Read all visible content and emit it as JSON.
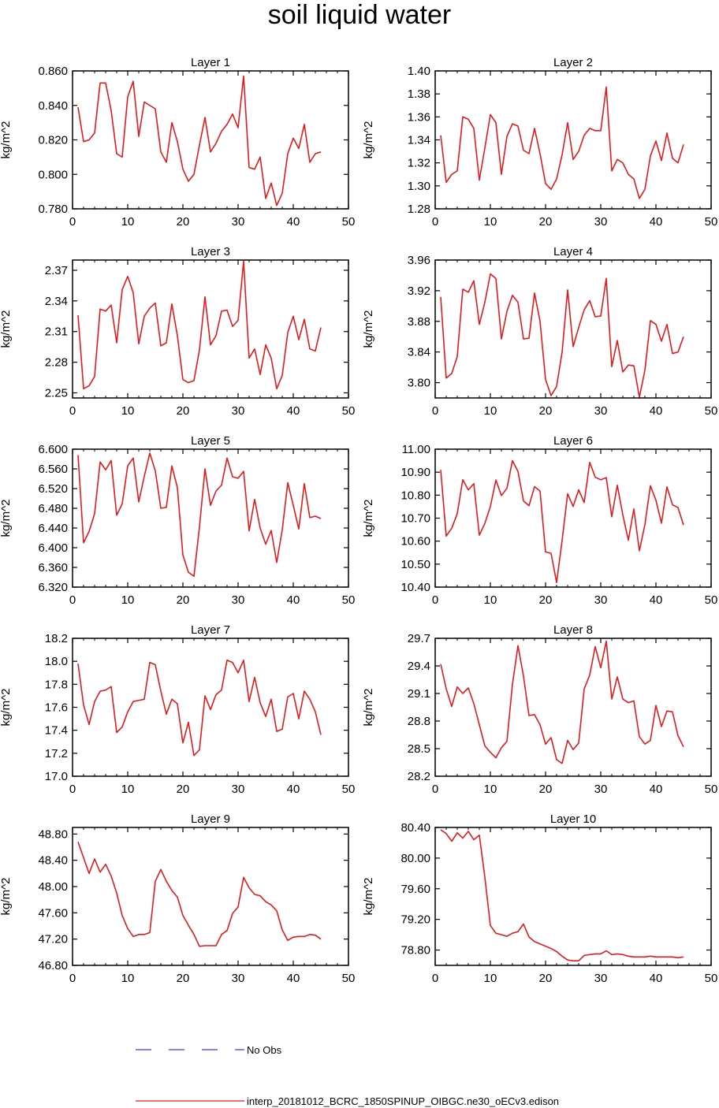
{
  "figure": {
    "title": "soil liquid water"
  },
  "colors": {
    "model_line": "#e31a1c",
    "obs_line": "#3b3bf0",
    "axis": "#000000"
  },
  "legend": {
    "obs_label": "No Obs",
    "model_label": "interp_20181012_BCRC_1850SPINUP_OIBGC.ne30_oECv3.edison"
  },
  "chart_data": [
    {
      "type": "line",
      "title": "Layer 1",
      "ylabel": "kg/m^2",
      "xlim": [
        0,
        50
      ],
      "ylim": [
        0.78,
        0.86
      ],
      "xticks": [
        0,
        10,
        20,
        30,
        40,
        50
      ],
      "yticks": [
        "0.780",
        "0.800",
        "0.820",
        "0.840",
        "0.860"
      ],
      "x": [
        1,
        2,
        3,
        4,
        5,
        6,
        7,
        8,
        9,
        10,
        11,
        12,
        13,
        14,
        15,
        16,
        17,
        18,
        19,
        20,
        21,
        22,
        23,
        24,
        25,
        26,
        27,
        28,
        29,
        30,
        31,
        32,
        33,
        34,
        35,
        36,
        37,
        38,
        39,
        40,
        41,
        42,
        43,
        44,
        45
      ],
      "series": [
        {
          "values": [
            0.839,
            0.819,
            0.82,
            0.824,
            0.853,
            0.853,
            0.837,
            0.812,
            0.81,
            0.845,
            0.854,
            0.822,
            0.842,
            0.84,
            0.838,
            0.813,
            0.807,
            0.83,
            0.819,
            0.803,
            0.796,
            0.8,
            0.817,
            0.833,
            0.813,
            0.818,
            0.825,
            0.829,
            0.835,
            0.827,
            0.857,
            0.804,
            0.803,
            0.81,
            0.786,
            0.795,
            0.782,
            0.789,
            0.812,
            0.821,
            0.815,
            0.829,
            0.807,
            0.812,
            0.813
          ]
        }
      ]
    },
    {
      "type": "line",
      "title": "Layer 2",
      "ylabel": "kg/m^2",
      "xlim": [
        0,
        50
      ],
      "ylim": [
        1.28,
        1.4
      ],
      "xticks": [
        0,
        10,
        20,
        30,
        40,
        50
      ],
      "yticks": [
        "1.28",
        "1.30",
        "1.32",
        "1.34",
        "1.36",
        "1.38",
        "1.40"
      ],
      "x": [
        1,
        2,
        3,
        4,
        5,
        6,
        7,
        8,
        9,
        10,
        11,
        12,
        13,
        14,
        15,
        16,
        17,
        18,
        19,
        20,
        21,
        22,
        23,
        24,
        25,
        26,
        27,
        28,
        29,
        30,
        31,
        32,
        33,
        34,
        35,
        36,
        37,
        38,
        39,
        40,
        41,
        42,
        43,
        44,
        45
      ],
      "series": [
        {
          "values": [
            1.344,
            1.303,
            1.31,
            1.313,
            1.36,
            1.358,
            1.35,
            1.305,
            1.333,
            1.362,
            1.355,
            1.31,
            1.343,
            1.354,
            1.352,
            1.331,
            1.328,
            1.35,
            1.328,
            1.302,
            1.297,
            1.306,
            1.327,
            1.355,
            1.323,
            1.33,
            1.344,
            1.35,
            1.348,
            1.348,
            1.386,
            1.313,
            1.323,
            1.32,
            1.31,
            1.306,
            1.289,
            1.297,
            1.326,
            1.339,
            1.322,
            1.346,
            1.324,
            1.32,
            1.336
          ]
        }
      ]
    },
    {
      "type": "line",
      "title": "Layer 3",
      "ylabel": "kg/m^2",
      "xlim": [
        0,
        50
      ],
      "ylim": [
        2.245,
        2.38
      ],
      "xticks": [
        0,
        10,
        20,
        30,
        40,
        50
      ],
      "yticks": [
        "2.25",
        "2.28",
        "2.31",
        "2.34",
        "2.37"
      ],
      "x": [
        1,
        2,
        3,
        4,
        5,
        6,
        7,
        8,
        9,
        10,
        11,
        12,
        13,
        14,
        15,
        16,
        17,
        18,
        19,
        20,
        21,
        22,
        23,
        24,
        25,
        26,
        27,
        28,
        29,
        30,
        31,
        32,
        33,
        34,
        35,
        36,
        37,
        38,
        39,
        40,
        41,
        42,
        43,
        44,
        45
      ],
      "series": [
        {
          "values": [
            2.326,
            2.254,
            2.257,
            2.266,
            2.332,
            2.33,
            2.336,
            2.299,
            2.351,
            2.364,
            2.348,
            2.298,
            2.325,
            2.333,
            2.338,
            2.296,
            2.299,
            2.337,
            2.306,
            2.263,
            2.26,
            2.262,
            2.292,
            2.344,
            2.297,
            2.306,
            2.33,
            2.331,
            2.315,
            2.321,
            2.379,
            2.284,
            2.293,
            2.268,
            2.297,
            2.284,
            2.254,
            2.267,
            2.309,
            2.325,
            2.302,
            2.322,
            2.293,
            2.291,
            2.314
          ]
        }
      ]
    },
    {
      "type": "line",
      "title": "Layer 4",
      "ylabel": "kg/m^2",
      "xlim": [
        0,
        50
      ],
      "ylim": [
        3.78,
        3.96
      ],
      "xticks": [
        0,
        10,
        20,
        30,
        40,
        50
      ],
      "yticks": [
        "3.80",
        "3.84",
        "3.88",
        "3.92",
        "3.96"
      ],
      "x": [
        1,
        2,
        3,
        4,
        5,
        6,
        7,
        8,
        9,
        10,
        11,
        12,
        13,
        14,
        15,
        16,
        17,
        18,
        19,
        20,
        21,
        22,
        23,
        24,
        25,
        26,
        27,
        28,
        29,
        30,
        31,
        32,
        33,
        34,
        35,
        36,
        37,
        38,
        39,
        40,
        41,
        42,
        43,
        44,
        45
      ],
      "series": [
        {
          "values": [
            3.912,
            3.806,
            3.812,
            3.834,
            3.922,
            3.918,
            3.933,
            3.876,
            3.905,
            3.942,
            3.936,
            3.857,
            3.893,
            3.914,
            3.905,
            3.857,
            3.858,
            3.917,
            3.88,
            3.804,
            3.783,
            3.795,
            3.84,
            3.921,
            3.847,
            3.872,
            3.895,
            3.907,
            3.886,
            3.887,
            3.936,
            3.821,
            3.855,
            3.814,
            3.823,
            3.822,
            3.781,
            3.816,
            3.881,
            3.876,
            3.854,
            3.876,
            3.838,
            3.84,
            3.86
          ]
        }
      ]
    },
    {
      "type": "line",
      "title": "Layer 5",
      "ylabel": "kg/m^2",
      "xlim": [
        0,
        50
      ],
      "ylim": [
        6.32,
        6.6
      ],
      "xticks": [
        0,
        10,
        20,
        30,
        40,
        50
      ],
      "yticks": [
        "6.320",
        "6.360",
        "6.400",
        "6.440",
        "6.480",
        "6.520",
        "6.560",
        "6.600"
      ],
      "x": [
        1,
        2,
        3,
        4,
        5,
        6,
        7,
        8,
        9,
        10,
        11,
        12,
        13,
        14,
        15,
        16,
        17,
        18,
        19,
        20,
        21,
        22,
        23,
        24,
        25,
        26,
        27,
        28,
        29,
        30,
        31,
        32,
        33,
        34,
        35,
        36,
        37,
        38,
        39,
        40,
        41,
        42,
        43,
        44,
        45
      ],
      "series": [
        {
          "values": [
            6.588,
            6.41,
            6.433,
            6.469,
            6.574,
            6.558,
            6.577,
            6.466,
            6.489,
            6.566,
            6.582,
            6.493,
            6.545,
            6.592,
            6.556,
            6.48,
            6.482,
            6.566,
            6.522,
            6.385,
            6.35,
            6.342,
            6.442,
            6.56,
            6.486,
            6.515,
            6.527,
            6.582,
            6.544,
            6.541,
            6.555,
            6.434,
            6.498,
            6.44,
            6.407,
            6.435,
            6.37,
            6.436,
            6.532,
            6.486,
            6.438,
            6.53,
            6.461,
            6.464,
            6.459
          ]
        }
      ]
    },
    {
      "type": "line",
      "title": "Layer 6",
      "ylabel": "kg/m^2",
      "xlim": [
        0,
        50
      ],
      "ylim": [
        10.4,
        11.0
      ],
      "xticks": [
        0,
        10,
        20,
        30,
        40,
        50
      ],
      "yticks": [
        "10.40",
        "10.50",
        "10.60",
        "10.70",
        "10.80",
        "10.90",
        "11.00"
      ],
      "x": [
        1,
        2,
        3,
        4,
        5,
        6,
        7,
        8,
        9,
        10,
        11,
        12,
        13,
        14,
        15,
        16,
        17,
        18,
        19,
        20,
        21,
        22,
        23,
        24,
        25,
        26,
        27,
        28,
        29,
        30,
        31,
        32,
        33,
        34,
        35,
        36,
        37,
        38,
        39,
        40,
        41,
        42,
        43,
        44,
        45
      ],
      "series": [
        {
          "values": [
            10.91,
            10.622,
            10.656,
            10.72,
            10.867,
            10.823,
            10.85,
            10.626,
            10.677,
            10.751,
            10.866,
            10.798,
            10.83,
            10.95,
            10.903,
            10.775,
            10.754,
            10.837,
            10.818,
            10.553,
            10.547,
            10.42,
            10.603,
            10.806,
            10.751,
            10.823,
            10.768,
            10.943,
            10.878,
            10.867,
            10.876,
            10.706,
            10.843,
            10.714,
            10.604,
            10.74,
            10.558,
            10.672,
            10.841,
            10.778,
            10.678,
            10.836,
            10.758,
            10.746,
            10.67
          ]
        }
      ]
    },
    {
      "type": "line",
      "title": "Layer 7",
      "ylabel": "kg/m^2",
      "xlim": [
        0,
        50
      ],
      "ylim": [
        17.0,
        18.2
      ],
      "xticks": [
        0,
        10,
        20,
        30,
        40,
        50
      ],
      "yticks": [
        "17.0",
        "17.2",
        "17.4",
        "17.6",
        "17.8",
        "18.0",
        "18.2"
      ],
      "x": [
        1,
        2,
        3,
        4,
        5,
        6,
        7,
        8,
        9,
        10,
        11,
        12,
        13,
        14,
        15,
        16,
        17,
        18,
        19,
        20,
        21,
        22,
        23,
        24,
        25,
        26,
        27,
        28,
        29,
        30,
        31,
        32,
        33,
        34,
        35,
        36,
        37,
        38,
        39,
        40,
        41,
        42,
        43,
        44,
        45
      ],
      "series": [
        {
          "values": [
            17.98,
            17.62,
            17.45,
            17.65,
            17.74,
            17.75,
            17.78,
            17.38,
            17.43,
            17.56,
            17.65,
            17.66,
            17.67,
            17.99,
            17.97,
            17.74,
            17.54,
            17.67,
            17.63,
            17.29,
            17.47,
            17.18,
            17.23,
            17.7,
            17.58,
            17.71,
            17.75,
            18.01,
            17.99,
            17.9,
            18.01,
            17.65,
            17.86,
            17.64,
            17.52,
            17.67,
            17.39,
            17.41,
            17.69,
            17.72,
            17.5,
            17.74,
            17.67,
            17.56,
            17.36
          ]
        }
      ]
    },
    {
      "type": "line",
      "title": "Layer 8",
      "ylabel": "kg/m^2",
      "xlim": [
        0,
        50
      ],
      "ylim": [
        28.2,
        29.7
      ],
      "xticks": [
        0,
        10,
        20,
        30,
        40,
        50
      ],
      "yticks": [
        "28.2",
        "28.5",
        "28.8",
        "29.1",
        "29.4",
        "29.7"
      ],
      "x": [
        1,
        2,
        3,
        4,
        5,
        6,
        7,
        8,
        9,
        10,
        11,
        12,
        13,
        14,
        15,
        16,
        17,
        18,
        19,
        20,
        21,
        22,
        23,
        24,
        25,
        26,
        27,
        28,
        29,
        30,
        31,
        32,
        33,
        34,
        35,
        36,
        37,
        38,
        39,
        40,
        41,
        42,
        43,
        44,
        45
      ],
      "series": [
        {
          "values": [
            29.42,
            29.15,
            28.96,
            29.17,
            29.1,
            29.16,
            28.99,
            28.76,
            28.53,
            28.46,
            28.4,
            28.51,
            28.58,
            29.2,
            29.62,
            29.29,
            28.86,
            28.87,
            28.76,
            28.55,
            28.62,
            28.38,
            28.34,
            28.59,
            28.49,
            28.56,
            29.15,
            29.3,
            29.61,
            29.38,
            29.67,
            29.04,
            29.28,
            29.04,
            29.0,
            29.02,
            28.63,
            28.55,
            28.59,
            28.97,
            28.74,
            28.91,
            28.9,
            28.64,
            28.52
          ]
        }
      ]
    },
    {
      "type": "line",
      "title": "Layer 9",
      "ylabel": "kg/m^2",
      "xlim": [
        0,
        50
      ],
      "ylim": [
        46.8,
        48.9
      ],
      "xticks": [
        0,
        10,
        20,
        30,
        40,
        50
      ],
      "yticks": [
        "46.80",
        "47.20",
        "47.60",
        "48.00",
        "48.40",
        "48.80"
      ],
      "x": [
        1,
        2,
        3,
        4,
        5,
        6,
        7,
        8,
        9,
        10,
        11,
        12,
        13,
        14,
        15,
        16,
        17,
        18,
        19,
        20,
        21,
        22,
        23,
        24,
        25,
        26,
        27,
        28,
        29,
        30,
        31,
        32,
        33,
        34,
        35,
        36,
        37,
        38,
        39,
        40,
        41,
        42,
        43,
        44,
        45
      ],
      "series": [
        {
          "values": [
            48.68,
            48.44,
            48.2,
            48.42,
            48.22,
            48.34,
            48.16,
            47.9,
            47.56,
            47.36,
            47.24,
            47.27,
            47.27,
            47.3,
            48.08,
            48.26,
            48.08,
            47.94,
            47.84,
            47.56,
            47.41,
            47.27,
            47.09,
            47.1,
            47.1,
            47.1,
            47.27,
            47.33,
            47.59,
            47.69,
            48.14,
            47.98,
            47.88,
            47.86,
            47.77,
            47.72,
            47.63,
            47.34,
            47.18,
            47.23,
            47.24,
            47.24,
            47.27,
            47.26,
            47.2
          ]
        }
      ]
    },
    {
      "type": "line",
      "title": "Layer 10",
      "ylabel": "kg/m^2",
      "xlim": [
        0,
        50
      ],
      "ylim": [
        78.6,
        80.4
      ],
      "xticks": [
        0,
        10,
        20,
        30,
        40,
        50
      ],
      "yticks": [
        "78.80",
        "79.20",
        "79.60",
        "80.00",
        "80.40"
      ],
      "x": [
        1,
        2,
        3,
        4,
        5,
        6,
        7,
        8,
        9,
        10,
        11,
        12,
        13,
        14,
        15,
        16,
        17,
        18,
        19,
        20,
        21,
        22,
        23,
        24,
        25,
        26,
        27,
        28,
        29,
        30,
        31,
        32,
        33,
        34,
        35,
        36,
        37,
        38,
        39,
        40,
        41,
        42,
        43,
        44,
        45
      ],
      "series": [
        {
          "values": [
            80.37,
            80.32,
            80.22,
            80.33,
            80.26,
            80.35,
            80.24,
            80.3,
            79.75,
            79.12,
            79.02,
            79.0,
            78.98,
            79.02,
            79.04,
            79.14,
            78.97,
            78.91,
            78.88,
            78.85,
            78.82,
            78.78,
            78.72,
            78.67,
            78.66,
            78.66,
            78.73,
            78.74,
            78.75,
            78.75,
            78.79,
            78.74,
            78.75,
            78.74,
            78.72,
            78.71,
            78.71,
            78.71,
            78.72,
            78.71,
            78.71,
            78.71,
            78.71,
            78.7,
            78.71
          ]
        }
      ]
    }
  ]
}
